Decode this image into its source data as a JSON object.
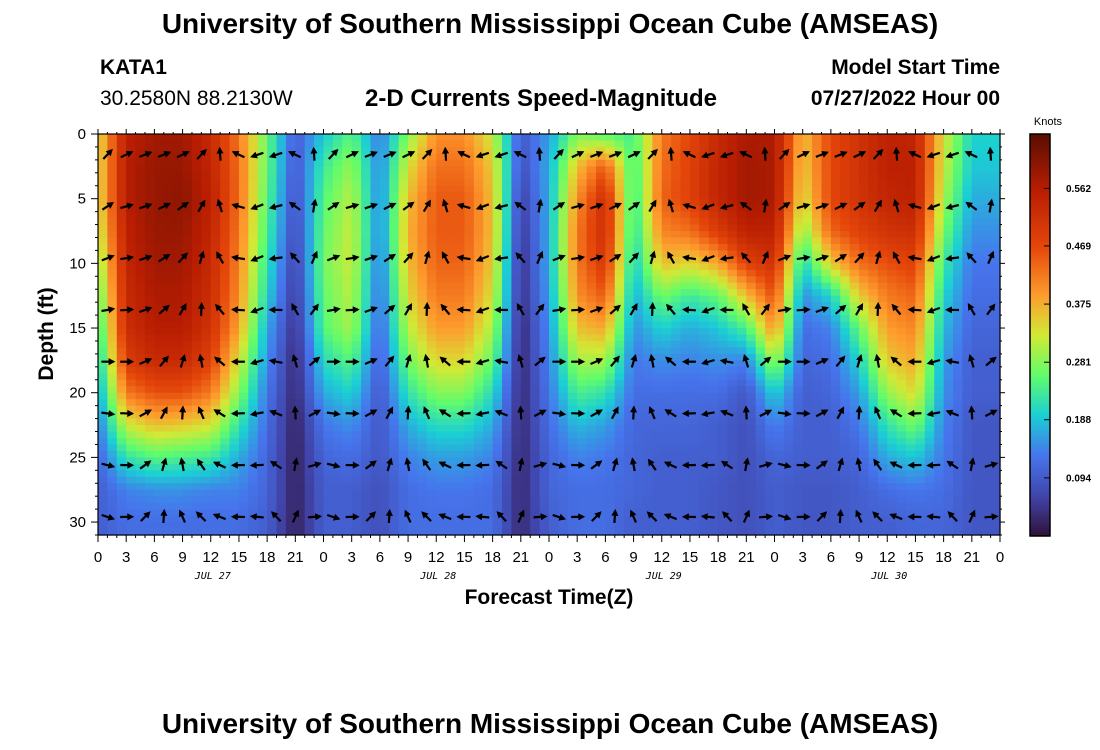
{
  "header": {
    "title": "University of Southern Mississippi Ocean Cube (AMSEAS)",
    "station_id": "KATA1",
    "coords": "30.2580N  88.2130W",
    "subtitle": "2-D Currents Speed-Magnitude",
    "model_start_label": "Model Start Time",
    "model_start_value": "07/27/2022 Hour 00"
  },
  "footer": {
    "title": "University of Southern Mississippi Ocean Cube (AMSEAS)"
  },
  "chart_data": {
    "type": "heatmap",
    "title": "2-D Currents Speed-Magnitude",
    "xlabel": "Forecast Time(Z)",
    "ylabel": "Depth (ft)",
    "unit": "Knots",
    "x_range_hours": [
      0,
      96
    ],
    "x_ticks": [
      "0",
      "3",
      "6",
      "9",
      "12",
      "15",
      "18",
      "21",
      "0",
      "3",
      "6",
      "9",
      "12",
      "15",
      "18",
      "21",
      "0",
      "3",
      "6",
      "9",
      "12",
      "15",
      "18",
      "21",
      "0",
      "3",
      "6",
      "9",
      "12",
      "15",
      "18",
      "21",
      "0"
    ],
    "day_labels": [
      {
        "label": "JUL 27",
        "center_hour": 12
      },
      {
        "label": "JUL 28",
        "center_hour": 36
      },
      {
        "label": "JUL 29",
        "center_hour": 60
      },
      {
        "label": "JUL 30",
        "center_hour": 84
      }
    ],
    "y_range_ft": [
      0,
      31
    ],
    "y_ticks": [
      "0",
      "5",
      "10",
      "15",
      "20",
      "25",
      "30"
    ],
    "colorbar": {
      "min": 0,
      "max": 0.65,
      "ticks": [
        "0.562",
        "0.469",
        "0.375",
        "0.281",
        "0.188",
        "0.094"
      ],
      "tick_values": [
        0.562,
        0.469,
        0.375,
        0.281,
        0.188,
        0.094
      ]
    },
    "speed_cells": {
      "hours": [
        0,
        1,
        2,
        3,
        4,
        5,
        6,
        7,
        8,
        9,
        10,
        11,
        12,
        13,
        14,
        15,
        16,
        17,
        18,
        19,
        20,
        21,
        22,
        23,
        24,
        25,
        26,
        27,
        28,
        29,
        30,
        31,
        32,
        33,
        34,
        35,
        36,
        37,
        38,
        39,
        40,
        41,
        42,
        43,
        44,
        45,
        46,
        47,
        48,
        49,
        50,
        51,
        52,
        53,
        54,
        55,
        56,
        57,
        58,
        59,
        60,
        61,
        62,
        63,
        64,
        65,
        66,
        67,
        68,
        69,
        70,
        71,
        72,
        73,
        74,
        75,
        76,
        77,
        78,
        79,
        80,
        81,
        82,
        83,
        84,
        85,
        86,
        87,
        88,
        89,
        90,
        91,
        92,
        93,
        94,
        95
      ],
      "depths_ft": [
        0,
        2.5,
        5,
        7.5,
        10,
        12.5,
        15,
        17.5,
        20,
        22.5,
        25,
        27.5,
        30
      ],
      "profiles": [
        [
          0.33,
          0.33,
          0.33,
          0.31,
          0.28,
          0.25,
          0.22,
          0.19,
          0.16,
          0.13,
          0.11,
          0.1,
          0.1
        ],
        [
          0.55,
          0.56,
          0.56,
          0.55,
          0.54,
          0.53,
          0.52,
          0.49,
          0.42,
          0.32,
          0.22,
          0.14,
          0.12
        ],
        [
          0.58,
          0.59,
          0.59,
          0.59,
          0.58,
          0.57,
          0.56,
          0.53,
          0.46,
          0.36,
          0.25,
          0.15,
          0.12
        ],
        [
          0.58,
          0.59,
          0.6,
          0.59,
          0.58,
          0.57,
          0.56,
          0.53,
          0.46,
          0.35,
          0.24,
          0.15,
          0.12
        ],
        [
          0.53,
          0.54,
          0.55,
          0.54,
          0.53,
          0.52,
          0.51,
          0.48,
          0.42,
          0.33,
          0.23,
          0.14,
          0.12
        ],
        [
          0.42,
          0.43,
          0.43,
          0.42,
          0.41,
          0.4,
          0.38,
          0.33,
          0.28,
          0.22,
          0.17,
          0.14,
          0.12
        ],
        [
          0.26,
          0.26,
          0.25,
          0.24,
          0.22,
          0.2,
          0.17,
          0.15,
          0.13,
          0.12,
          0.11,
          0.11,
          0.1
        ],
        [
          0.1,
          0.09,
          0.08,
          0.07,
          0.06,
          0.05,
          0.04,
          0.03,
          0.03,
          0.02,
          0.02,
          0.02,
          0.02
        ],
        [
          0.19,
          0.23,
          0.25,
          0.26,
          0.27,
          0.26,
          0.25,
          0.21,
          0.17,
          0.13,
          0.11,
          0.1,
          0.1
        ],
        [
          0.25,
          0.29,
          0.31,
          0.32,
          0.32,
          0.31,
          0.3,
          0.25,
          0.2,
          0.15,
          0.12,
          0.1,
          0.1
        ],
        [
          0.13,
          0.14,
          0.14,
          0.14,
          0.13,
          0.12,
          0.11,
          0.1,
          0.09,
          0.09,
          0.09,
          0.08,
          0.08
        ],
        [
          0.28,
          0.33,
          0.36,
          0.37,
          0.36,
          0.34,
          0.31,
          0.27,
          0.22,
          0.17,
          0.14,
          0.12,
          0.12
        ],
        [
          0.4,
          0.43,
          0.45,
          0.45,
          0.44,
          0.42,
          0.39,
          0.34,
          0.28,
          0.21,
          0.16,
          0.13,
          0.12
        ],
        [
          0.4,
          0.43,
          0.45,
          0.45,
          0.44,
          0.42,
          0.39,
          0.34,
          0.28,
          0.21,
          0.16,
          0.13,
          0.12
        ],
        [
          0.32,
          0.35,
          0.36,
          0.36,
          0.35,
          0.33,
          0.3,
          0.26,
          0.21,
          0.17,
          0.14,
          0.12,
          0.12
        ],
        [
          0.09,
          0.08,
          0.06,
          0.05,
          0.04,
          0.04,
          0.03,
          0.03,
          0.03,
          0.03,
          0.03,
          0.03,
          0.03
        ],
        [
          0.16,
          0.17,
          0.17,
          0.17,
          0.17,
          0.16,
          0.15,
          0.14,
          0.13,
          0.12,
          0.11,
          0.11,
          0.1
        ],
        [
          0.28,
          0.36,
          0.4,
          0.42,
          0.42,
          0.4,
          0.36,
          0.3,
          0.24,
          0.18,
          0.14,
          0.12,
          0.12
        ],
        [
          0.25,
          0.45,
          0.52,
          0.52,
          0.5,
          0.45,
          0.38,
          0.3,
          0.22,
          0.16,
          0.13,
          0.12,
          0.12
        ],
        [
          0.24,
          0.23,
          0.22,
          0.21,
          0.19,
          0.17,
          0.15,
          0.13,
          0.12,
          0.11,
          0.11,
          0.11,
          0.1
        ],
        [
          0.42,
          0.43,
          0.44,
          0.41,
          0.36,
          0.27,
          0.2,
          0.15,
          0.12,
          0.11,
          0.1,
          0.1,
          0.1
        ],
        [
          0.47,
          0.48,
          0.48,
          0.43,
          0.34,
          0.23,
          0.17,
          0.14,
          0.12,
          0.11,
          0.1,
          0.1,
          0.1
        ],
        [
          0.53,
          0.54,
          0.54,
          0.49,
          0.38,
          0.26,
          0.19,
          0.15,
          0.12,
          0.1,
          0.1,
          0.09,
          0.09
        ],
        [
          0.57,
          0.58,
          0.58,
          0.55,
          0.48,
          0.36,
          0.24,
          0.14,
          0.09,
          0.08,
          0.08,
          0.08,
          0.08
        ],
        [
          0.57,
          0.57,
          0.57,
          0.55,
          0.51,
          0.46,
          0.4,
          0.3,
          0.2,
          0.14,
          0.11,
          0.1,
          0.1
        ],
        [
          0.36,
          0.35,
          0.33,
          0.28,
          0.2,
          0.15,
          0.12,
          0.11,
          0.1,
          0.1,
          0.1,
          0.09,
          0.09
        ],
        [
          0.47,
          0.47,
          0.47,
          0.44,
          0.35,
          0.2,
          0.14,
          0.12,
          0.11,
          0.1,
          0.1,
          0.09,
          0.09
        ],
        [
          0.51,
          0.51,
          0.51,
          0.48,
          0.43,
          0.35,
          0.26,
          0.2,
          0.16,
          0.13,
          0.11,
          0.1,
          0.1
        ],
        [
          0.55,
          0.55,
          0.54,
          0.51,
          0.46,
          0.42,
          0.39,
          0.35,
          0.29,
          0.22,
          0.17,
          0.12,
          0.1
        ],
        [
          0.54,
          0.55,
          0.55,
          0.52,
          0.48,
          0.44,
          0.41,
          0.38,
          0.34,
          0.27,
          0.19,
          0.13,
          0.11
        ],
        [
          0.33,
          0.32,
          0.3,
          0.27,
          0.23,
          0.2,
          0.18,
          0.16,
          0.15,
          0.14,
          0.13,
          0.12,
          0.11
        ],
        [
          0.2,
          0.19,
          0.17,
          0.15,
          0.13,
          0.12,
          0.11,
          0.1,
          0.1,
          0.09,
          0.09,
          0.09,
          0.09
        ]
      ]
    },
    "arrow_rows_ft": [
      0,
      4,
      8,
      12,
      16,
      20,
      24,
      28
    ]
  },
  "colors": {
    "background": "#ffffff",
    "arrow": "#000000",
    "axis": "#000000"
  }
}
